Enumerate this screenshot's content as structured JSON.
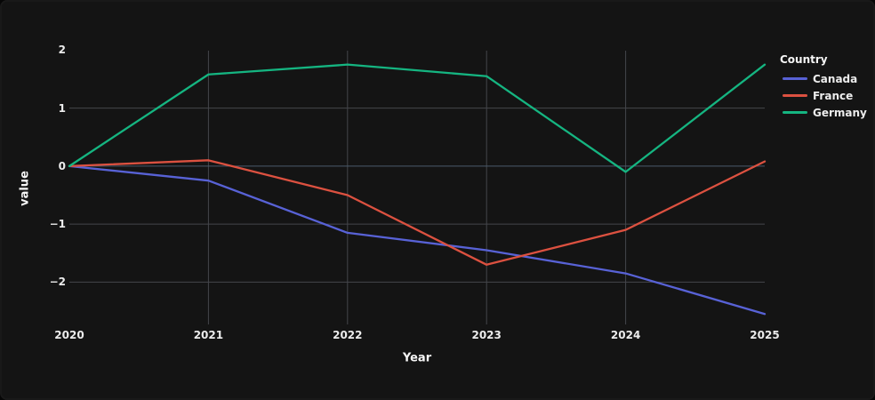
{
  "chart_data": {
    "type": "line",
    "title": "",
    "xlabel": "Year",
    "ylabel": "value",
    "legend_title": "Country",
    "legend_position": "right",
    "grid": true,
    "x": [
      2020,
      2021,
      2022,
      2023,
      2024,
      2025
    ],
    "series": [
      {
        "name": "Canada",
        "color": "#5862d6",
        "values": [
          0.0,
          -0.25,
          -1.15,
          -1.45,
          -1.85,
          -2.55
        ]
      },
      {
        "name": "France",
        "color": "#dc5140",
        "values": [
          0.0,
          0.1,
          -0.5,
          -1.7,
          -1.1,
          0.08
        ]
      },
      {
        "name": "Germany",
        "color": "#15b581",
        "values": [
          0.0,
          1.58,
          1.75,
          1.55,
          -0.1,
          1.75
        ]
      }
    ],
    "y_ticks": [
      {
        "label": "2",
        "value": 2
      },
      {
        "label": "1",
        "value": 1
      },
      {
        "label": "0",
        "value": 0
      },
      {
        "label": "−1",
        "value": -1
      },
      {
        "label": "−2",
        "value": -2
      }
    ],
    "x_gridlines": [
      2021,
      2022,
      2023,
      2024
    ],
    "y_gridlines": [
      1,
      0,
      -1,
      -2
    ],
    "ylim": [
      -2.73,
      1.99
    ]
  },
  "theme": {
    "background": "#141414",
    "text_color": "#ececec",
    "grid_color": "#44464b",
    "zero_line_color": "#4a5b6c"
  }
}
